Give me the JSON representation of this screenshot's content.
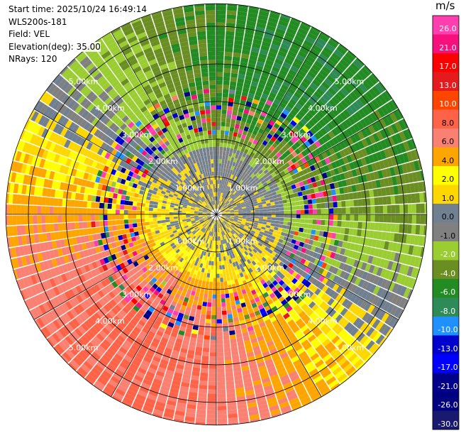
{
  "info": {
    "start_time": "Start time: 2025/10/24 16:49:14",
    "instrument": "WLS200s-181",
    "field": "Field: VEL",
    "elevation": "Elevation(deg): 35.00",
    "nrays": "NRays: 120"
  },
  "chart_data": {
    "type": "heatmap",
    "projection": "polar-ppi",
    "nrays": 120,
    "range_rings_km": [
      1,
      2,
      3,
      4,
      5
    ],
    "range_ring_labels": [
      "1.00km",
      "2.00km",
      "3.00km",
      "4.00km",
      "5.00km"
    ],
    "max_range_km": 5.6,
    "colorbar": {
      "unit": "m/s",
      "boundaries": [
        26.0,
        21.0,
        17.0,
        13.0,
        10.0,
        8.0,
        6.0,
        4.0,
        2.0,
        1.0,
        0.0,
        -1.0,
        -2.0,
        -4.0,
        -6.0,
        -8.0,
        -10.0,
        -13.0,
        -17.0,
        -21.0,
        -26.0,
        -30.0
      ],
      "labels": [
        "26.0",
        "21.0",
        "17.0",
        "13.0",
        "10.0",
        "8.0",
        "6.0",
        "4.0",
        "2.0",
        "1.0",
        "0.0",
        "-1.0",
        "-2.0",
        "-4.0",
        "-6.0",
        "-8.0",
        "-10.0",
        "-13.0",
        "-17.0",
        "-21.0",
        "-26.0",
        "-30.0"
      ],
      "colors": [
        "#ff3fb0",
        "#f70f7c",
        "#ff0000",
        "#e41a1c",
        "#ff4500",
        "#ff6347",
        "#fa8072",
        "#ffa500",
        "#ffff00",
        "#ffd700",
        "#708090",
        "#808080",
        "#9acd32",
        "#6b8e23",
        "#228b22",
        "#2e8b57",
        "#1e90ff",
        "#0000cd",
        "#0000ff",
        "#00008b",
        "#000080",
        "#191970"
      ]
    }
  }
}
